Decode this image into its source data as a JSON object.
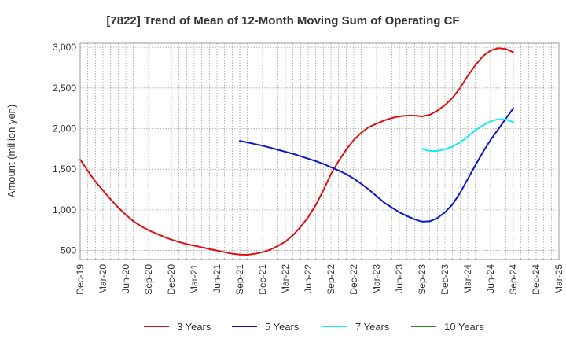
{
  "chart_data": {
    "type": "line",
    "title": "[7822]  Trend of Mean of 12-Month Moving Sum of Operating CF",
    "xlabel": "",
    "ylabel": "Amount (million yen)",
    "ylim": [
      390,
      3050
    ],
    "yticks": [
      500,
      1000,
      1500,
      2000,
      2500,
      3000
    ],
    "ytick_labels": [
      "500",
      "1,000",
      "1,500",
      "2,000",
      "2,500",
      "3,000"
    ],
    "xlim": [
      0,
      63
    ],
    "xticks": [
      0,
      3,
      6,
      9,
      12,
      15,
      18,
      21,
      24,
      27,
      30,
      33,
      36,
      39,
      42,
      45,
      48,
      51,
      54,
      57,
      60,
      63
    ],
    "xtick_labels": [
      "Dec-19",
      "Mar-20",
      "Jun-20",
      "Sep-20",
      "Dec-20",
      "Mar-21",
      "Jun-21",
      "Sep-21",
      "Dec-21",
      "Mar-22",
      "Jun-22",
      "Sep-22",
      "Dec-22",
      "Mar-23",
      "Jun-23",
      "Sep-23",
      "Dec-23",
      "Mar-24",
      "Jun-24",
      "Sep-24",
      "Dec-24",
      "Mar-25"
    ],
    "grid": true,
    "legend_position": "bottom",
    "series": [
      {
        "name": "3 Years",
        "color": "#dd1111",
        "points": [
          [
            0,
            1620
          ],
          [
            1,
            1480
          ],
          [
            2,
            1350
          ],
          [
            3,
            1240
          ],
          [
            4,
            1130
          ],
          [
            5,
            1030
          ],
          [
            6,
            940
          ],
          [
            7,
            860
          ],
          [
            8,
            800
          ],
          [
            9,
            750
          ],
          [
            10,
            710
          ],
          [
            11,
            670
          ],
          [
            12,
            635
          ],
          [
            13,
            605
          ],
          [
            14,
            580
          ],
          [
            15,
            560
          ],
          [
            16,
            540
          ],
          [
            17,
            520
          ],
          [
            18,
            500
          ],
          [
            19,
            480
          ],
          [
            20,
            462
          ],
          [
            21,
            450
          ],
          [
            22,
            448
          ],
          [
            23,
            460
          ],
          [
            24,
            480
          ],
          [
            25,
            510
          ],
          [
            26,
            555
          ],
          [
            27,
            610
          ],
          [
            28,
            690
          ],
          [
            29,
            790
          ],
          [
            30,
            910
          ],
          [
            31,
            1060
          ],
          [
            32,
            1240
          ],
          [
            33,
            1440
          ],
          [
            34,
            1600
          ],
          [
            35,
            1740
          ],
          [
            36,
            1860
          ],
          [
            37,
            1950
          ],
          [
            38,
            2020
          ],
          [
            39,
            2060
          ],
          [
            40,
            2100
          ],
          [
            41,
            2130
          ],
          [
            42,
            2150
          ],
          [
            43,
            2160
          ],
          [
            44,
            2160
          ],
          [
            45,
            2150
          ],
          [
            46,
            2170
          ],
          [
            47,
            2220
          ],
          [
            48,
            2290
          ],
          [
            49,
            2380
          ],
          [
            50,
            2500
          ],
          [
            51,
            2650
          ],
          [
            52,
            2780
          ],
          [
            53,
            2890
          ],
          [
            54,
            2960
          ],
          [
            55,
            2990
          ],
          [
            56,
            2980
          ],
          [
            57,
            2940
          ]
        ]
      },
      {
        "name": "5 Years",
        "color": "#0a18c8",
        "points": [
          [
            21,
            1850
          ],
          [
            22,
            1830
          ],
          [
            23,
            1810
          ],
          [
            24,
            1790
          ],
          [
            25,
            1765
          ],
          [
            26,
            1740
          ],
          [
            27,
            1715
          ],
          [
            28,
            1690
          ],
          [
            29,
            1660
          ],
          [
            30,
            1630
          ],
          [
            31,
            1600
          ],
          [
            32,
            1565
          ],
          [
            33,
            1525
          ],
          [
            34,
            1485
          ],
          [
            35,
            1440
          ],
          [
            36,
            1385
          ],
          [
            37,
            1320
          ],
          [
            38,
            1250
          ],
          [
            39,
            1170
          ],
          [
            40,
            1090
          ],
          [
            41,
            1030
          ],
          [
            42,
            970
          ],
          [
            43,
            925
          ],
          [
            44,
            885
          ],
          [
            45,
            855
          ],
          [
            46,
            860
          ],
          [
            47,
            900
          ],
          [
            48,
            970
          ],
          [
            49,
            1070
          ],
          [
            50,
            1210
          ],
          [
            51,
            1380
          ],
          [
            52,
            1550
          ],
          [
            53,
            1710
          ],
          [
            54,
            1860
          ],
          [
            55,
            1990
          ],
          [
            56,
            2120
          ],
          [
            57,
            2250
          ]
        ]
      },
      {
        "name": "7 Years",
        "color": "#11eeee",
        "points": [
          [
            45,
            1750
          ],
          [
            46,
            1725
          ],
          [
            47,
            1725
          ],
          [
            48,
            1745
          ],
          [
            49,
            1780
          ],
          [
            50,
            1830
          ],
          [
            51,
            1900
          ],
          [
            52,
            1980
          ],
          [
            53,
            2040
          ],
          [
            54,
            2090
          ],
          [
            55,
            2115
          ],
          [
            56,
            2115
          ],
          [
            57,
            2080
          ]
        ]
      },
      {
        "name": "10 Years",
        "color": "#1f8c1f",
        "points": []
      }
    ]
  }
}
